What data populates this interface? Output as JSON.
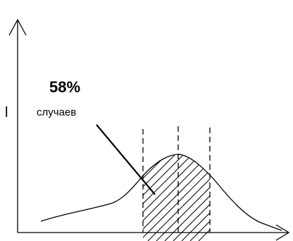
{
  "annotation": {
    "percent": "58%",
    "caption": "случаев"
  },
  "axis": {
    "y_label": "l"
  },
  "colors": {
    "ink": "#000000",
    "background": "#ffffff"
  }
}
